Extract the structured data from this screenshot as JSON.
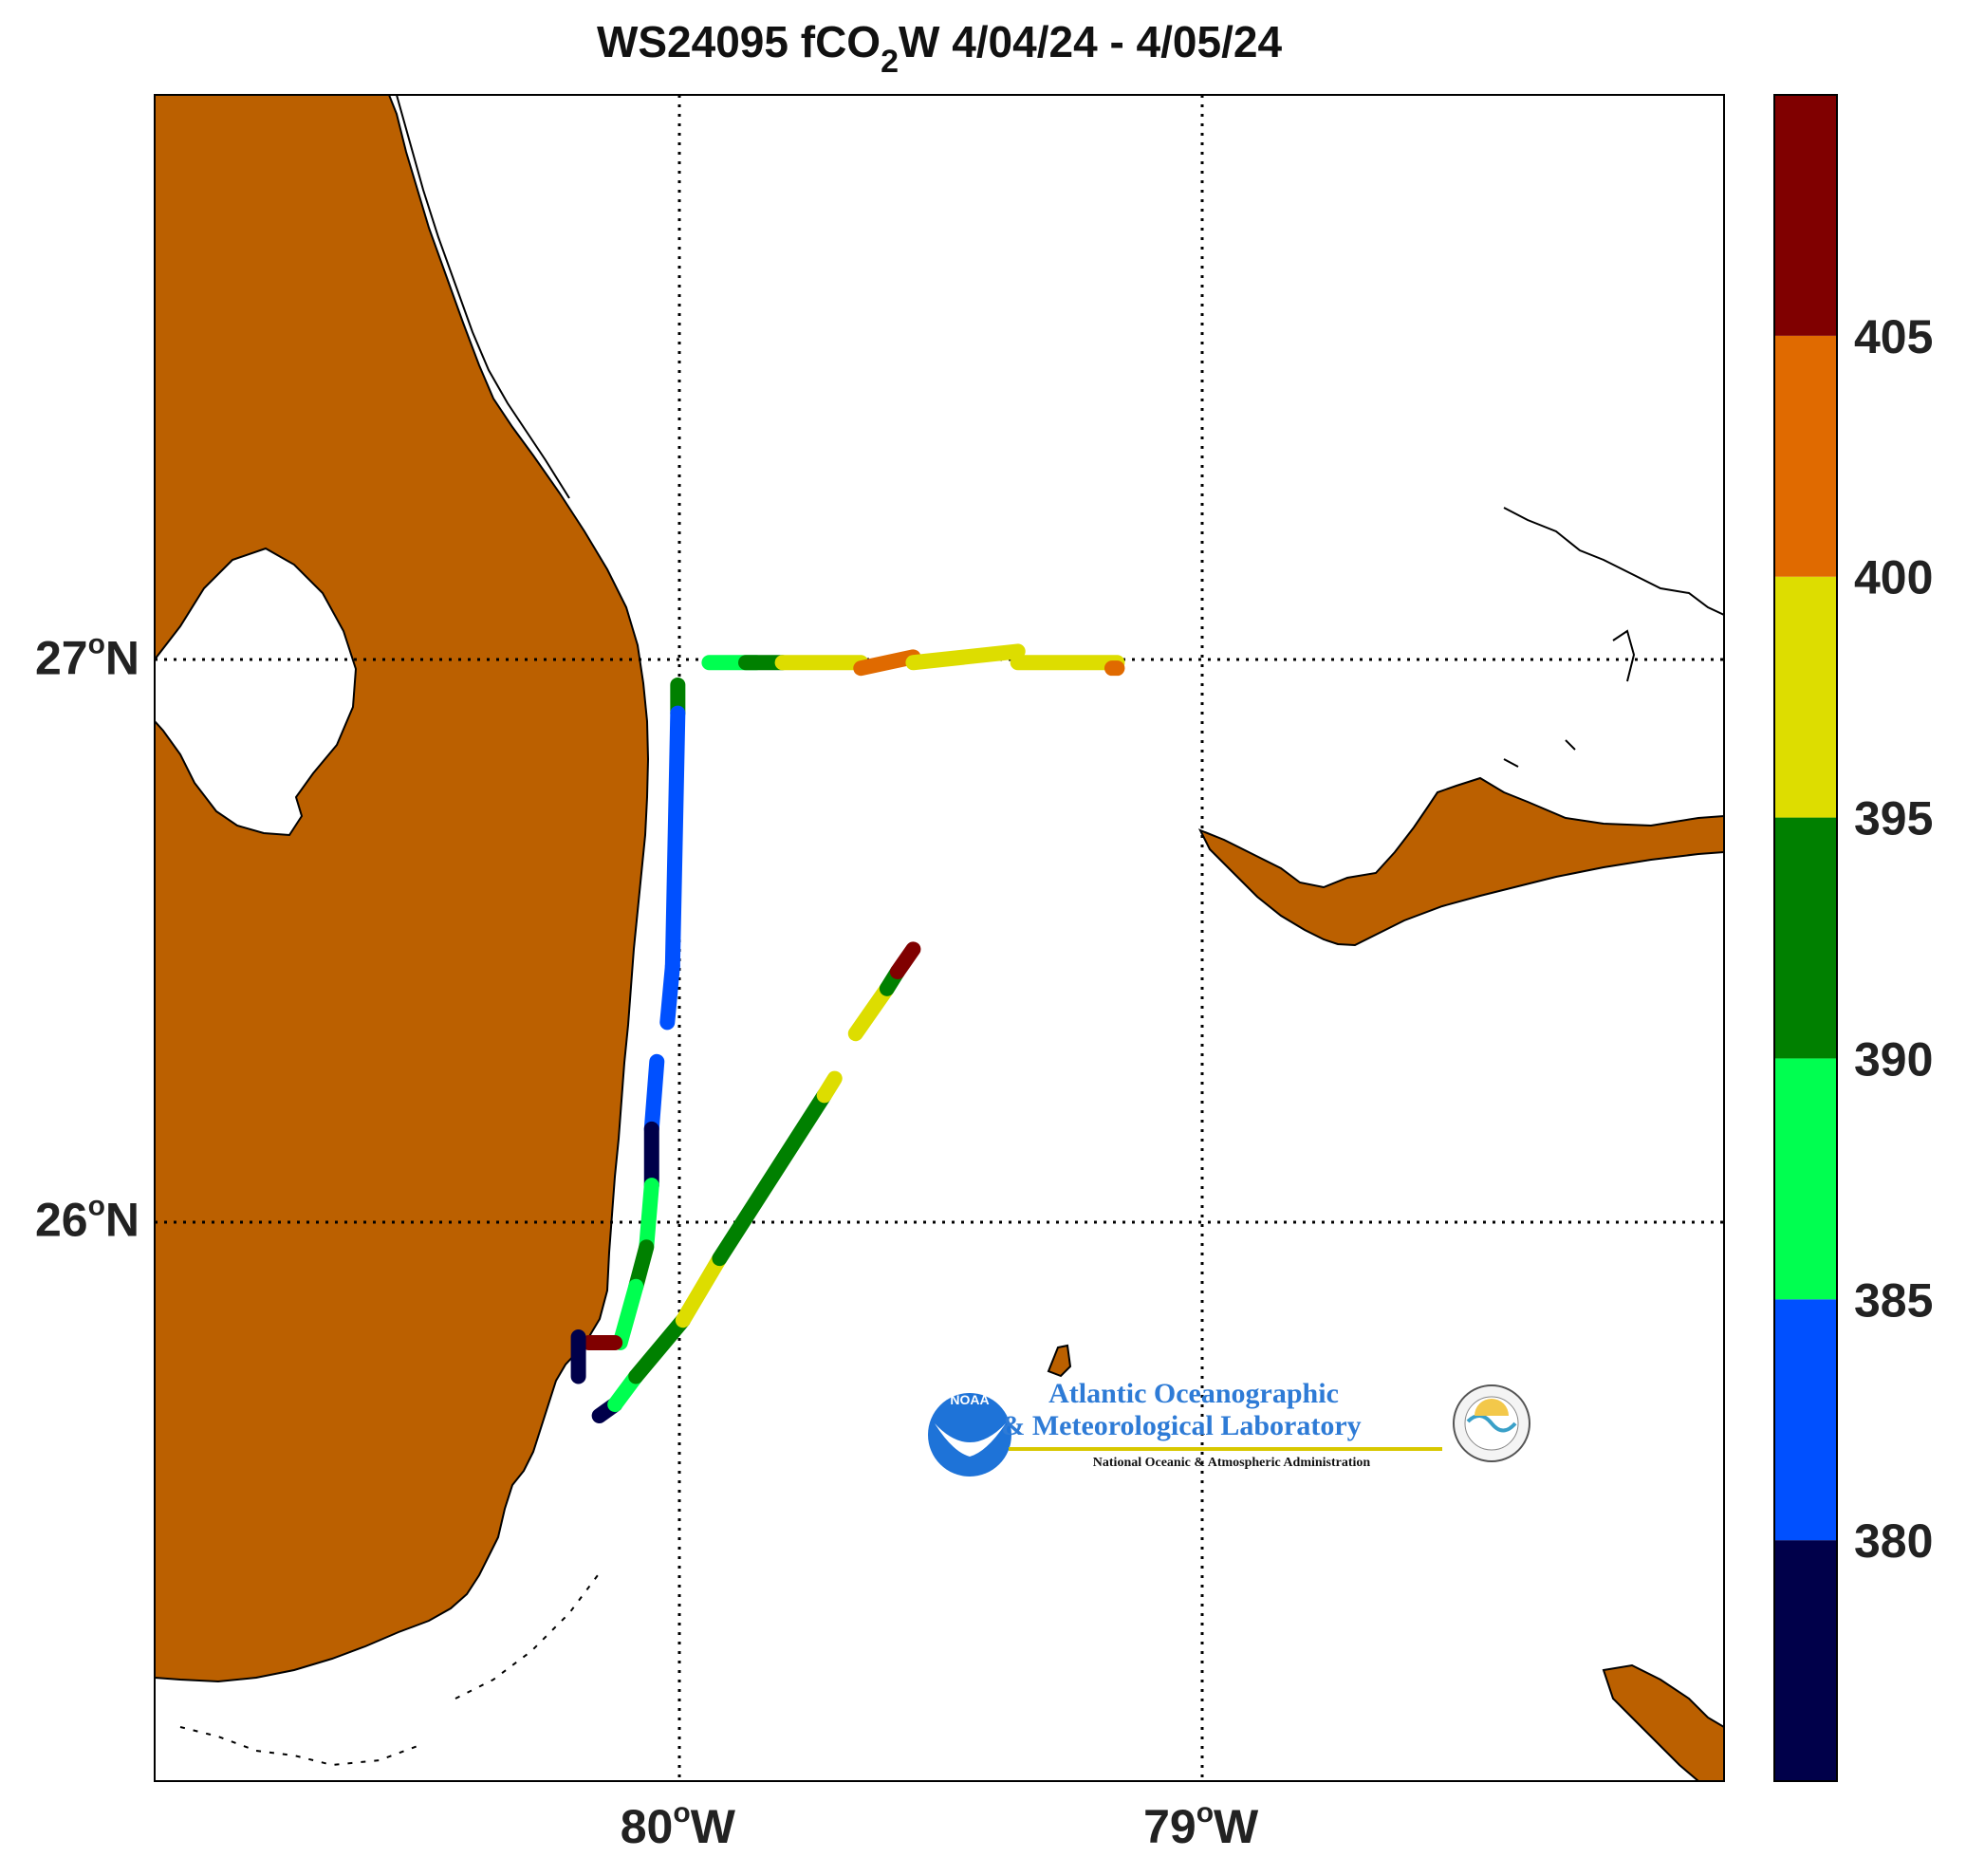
{
  "title": {
    "prefix": "WS24095 fCO",
    "subscript": "2",
    "suffix": "W 4/04/24 - 4/05/24"
  },
  "map": {
    "lon_range": [
      -81.0,
      -78.0
    ],
    "lat_range": [
      25.0,
      28.0
    ],
    "land_color": "#BB6000",
    "ocean_color": "#FFFFFF",
    "lake_label": "",
    "grid_style": "dotted",
    "lon_ticks": [
      {
        "value": -80,
        "label": "80",
        "deg": "o",
        "hemi": "W"
      },
      {
        "value": -79,
        "label": "79",
        "deg": "o",
        "hemi": "W"
      }
    ],
    "lat_ticks": [
      {
        "value": 27,
        "label": "27",
        "deg": "o",
        "hemi": "N"
      },
      {
        "value": 26,
        "label": "26",
        "deg": "o",
        "hemi": "N"
      }
    ]
  },
  "colorbar": {
    "min": 375,
    "max": 410,
    "ticks": [
      "380",
      "385",
      "390",
      "395",
      "400",
      "405"
    ],
    "bands": [
      {
        "from": 375,
        "to": 380,
        "color": "#00004A"
      },
      {
        "from": 380,
        "to": 385,
        "color": "#0050FF"
      },
      {
        "from": 385,
        "to": 390,
        "color": "#00FF50"
      },
      {
        "from": 390,
        "to": 395,
        "color": "#008000"
      },
      {
        "from": 395,
        "to": 400,
        "color": "#DDDD00"
      },
      {
        "from": 400,
        "to": 405,
        "color": "#E06A00"
      },
      {
        "from": 405,
        "to": 410,
        "color": "#800000"
      }
    ]
  },
  "tracks": [
    {
      "segments": [
        {
          "lon": [
            -79.94,
            -79.85
          ],
          "lat": [
            26.99,
            26.99
          ],
          "fco2": 387
        },
        {
          "lon": [
            -79.87,
            -79.8
          ],
          "lat": [
            26.99,
            26.99
          ],
          "fco2": 393
        },
        {
          "lon": [
            -79.8,
            -79.65
          ],
          "lat": [
            26.99,
            26.99
          ],
          "fco2": 398
        },
        {
          "lon": [
            -79.65,
            -79.55
          ],
          "lat": [
            26.98,
            27.0
          ],
          "fco2": 402
        },
        {
          "lon": [
            -79.55,
            -79.35
          ],
          "lat": [
            26.99,
            27.01
          ],
          "fco2": 398
        },
        {
          "lon": [
            -79.35,
            -79.16
          ],
          "lat": [
            26.99,
            26.99
          ],
          "fco2": 397
        },
        {
          "lon": [
            -79.17,
            -79.16
          ],
          "lat": [
            26.98,
            26.98
          ],
          "fco2": 402
        }
      ]
    },
    {
      "segments": [
        {
          "lon": [
            -80.0,
            -80.0
          ],
          "lat": [
            26.95,
            26.9
          ],
          "fco2": 392
        },
        {
          "lon": [
            -80.0,
            -80.01
          ],
          "lat": [
            26.9,
            26.45
          ],
          "fco2": 382
        },
        {
          "lon": [
            -80.01,
            -80.02
          ],
          "lat": [
            26.45,
            26.35
          ],
          "fco2": 384
        },
        {
          "lon": [
            -80.04,
            -80.05
          ],
          "lat": [
            26.28,
            26.16
          ],
          "fco2": 383
        },
        {
          "lon": [
            -80.05,
            -80.05
          ],
          "lat": [
            26.16,
            26.06
          ],
          "fco2": 378
        },
        {
          "lon": [
            -80.05,
            -80.06
          ],
          "lat": [
            26.06,
            25.95
          ],
          "fco2": 386
        },
        {
          "lon": [
            -80.06,
            -80.08
          ],
          "lat": [
            25.95,
            25.88
          ],
          "fco2": 392
        },
        {
          "lon": [
            -80.08,
            -80.11
          ],
          "lat": [
            25.88,
            25.78
          ],
          "fco2": 387
        },
        {
          "lon": [
            -80.12,
            -80.17
          ],
          "lat": [
            25.78,
            25.78
          ],
          "fco2": 407
        },
        {
          "lon": [
            -80.19,
            -80.19
          ],
          "lat": [
            25.79,
            25.72
          ],
          "fco2": 379
        }
      ]
    },
    {
      "segments": [
        {
          "lon": [
            -80.15,
            -80.12
          ],
          "lat": [
            25.65,
            25.67
          ],
          "fco2": 378
        },
        {
          "lon": [
            -80.12,
            -80.08
          ],
          "lat": [
            25.67,
            25.72
          ],
          "fco2": 387
        },
        {
          "lon": [
            -80.08,
            -79.99
          ],
          "lat": [
            25.72,
            25.82
          ],
          "fco2": 392
        },
        {
          "lon": [
            -79.99,
            -79.92
          ],
          "lat": [
            25.82,
            25.93
          ],
          "fco2": 398
        },
        {
          "lon": [
            -79.92,
            -79.72
          ],
          "lat": [
            25.93,
            26.22
          ],
          "fco2": 392
        },
        {
          "lon": [
            -79.72,
            -79.7
          ],
          "lat": [
            26.22,
            26.25
          ],
          "fco2": 398
        },
        {
          "lon": [
            -79.66,
            -79.6
          ],
          "lat": [
            26.33,
            26.41
          ],
          "fco2": 397
        },
        {
          "lon": [
            -79.6,
            -79.58
          ],
          "lat": [
            26.41,
            26.44
          ],
          "fco2": 393
        },
        {
          "lon": [
            -79.58,
            -79.55
          ],
          "lat": [
            26.44,
            26.48
          ],
          "fco2": 407
        }
      ]
    }
  ],
  "logo": {
    "line1": "Atlantic Oceanographic",
    "line2": "& Meteorological Laboratory",
    "line3": "National Oceanic & Atmospheric Administration",
    "badge": "NOAA"
  }
}
